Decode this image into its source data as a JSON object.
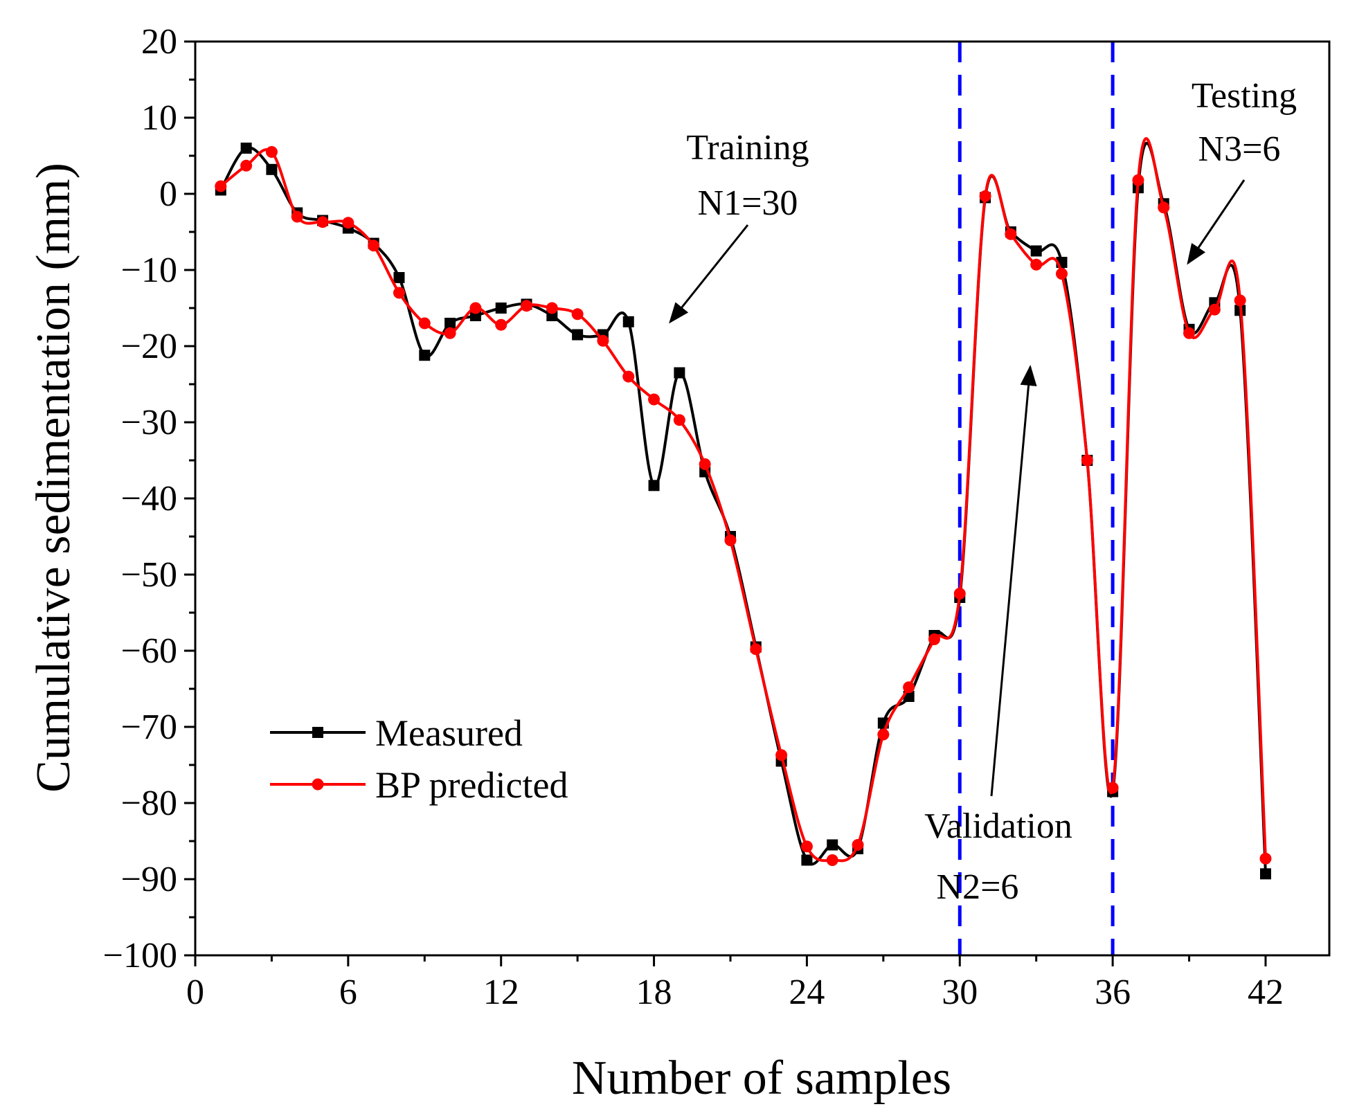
{
  "chart_data": {
    "type": "line",
    "title": "",
    "xlabel": "Number of samples",
    "ylabel": "Cumulative sedimentation (mm)",
    "xlim": [
      0,
      44.5
    ],
    "ylim": [
      -100,
      20
    ],
    "xticks": [
      0,
      6,
      12,
      18,
      24,
      30,
      36,
      42
    ],
    "yticks": [
      20,
      10,
      0,
      -10,
      -20,
      -30,
      -40,
      -50,
      -60,
      -70,
      -80,
      -90,
      -100
    ],
    "xtick_labels": [
      "0",
      "6",
      "12",
      "18",
      "24",
      "30",
      "36",
      "42"
    ],
    "ytick_labels": [
      "20",
      "10",
      "0",
      "−10",
      "−20",
      "−30",
      "−40",
      "−50",
      "−60",
      "−70",
      "−80",
      "−90",
      "−100"
    ],
    "grid": false,
    "legend_position": "bottom-left",
    "x": [
      1,
      2,
      3,
      4,
      5,
      6,
      7,
      8,
      9,
      10,
      11,
      12,
      13,
      14,
      15,
      16,
      17,
      18,
      19,
      20,
      21,
      22,
      23,
      24,
      25,
      26,
      27,
      28,
      29,
      30,
      31,
      32,
      33,
      34,
      35,
      36,
      37,
      38,
      39,
      40,
      41,
      42
    ],
    "series": [
      {
        "name": "Measured",
        "color": "#000000",
        "marker": "square",
        "values": [
          0.5,
          6.0,
          3.2,
          -2.5,
          -3.5,
          -4.5,
          -6.5,
          -11.0,
          -21.2,
          -17.0,
          -16.0,
          -15.0,
          -14.5,
          -16.0,
          -18.5,
          -18.5,
          -16.8,
          -38.3,
          -23.5,
          -36.5,
          -45.0,
          -59.5,
          -74.5,
          -87.5,
          -85.5,
          -86.0,
          -69.5,
          -66.0,
          -58.0,
          -53.0,
          -0.5,
          -5.0,
          -7.5,
          -9.0,
          -35.0,
          -78.5,
          0.8,
          -1.3,
          -17.8,
          -14.3,
          -15.3,
          -89.3
        ]
      },
      {
        "name": "BP predicted",
        "color": "#ff0000",
        "marker": "circle",
        "values": [
          1.0,
          3.7,
          5.5,
          -3.0,
          -3.7,
          -3.8,
          -6.8,
          -13.0,
          -17.0,
          -18.3,
          -15.0,
          -17.2,
          -14.7,
          -15.0,
          -15.8,
          -19.3,
          -24.0,
          -27.0,
          -29.7,
          -35.5,
          -45.5,
          -59.8,
          -73.7,
          -85.7,
          -87.5,
          -85.5,
          -71.0,
          -64.8,
          -58.5,
          -52.5,
          -0.3,
          -5.3,
          -9.3,
          -10.5,
          -35.0,
          -78.0,
          1.8,
          -1.8,
          -18.3,
          -15.2,
          -14.0,
          -87.3
        ]
      }
    ],
    "separators": [
      30,
      36
    ],
    "separator_color": "#0000ff",
    "annotations": [
      {
        "lines": [
          "Training",
          "N1=30"
        ]
      },
      {
        "lines": [
          "Validation",
          "N2=6"
        ]
      },
      {
        "lines": [
          "Testing",
          "N3=6"
        ]
      }
    ]
  }
}
